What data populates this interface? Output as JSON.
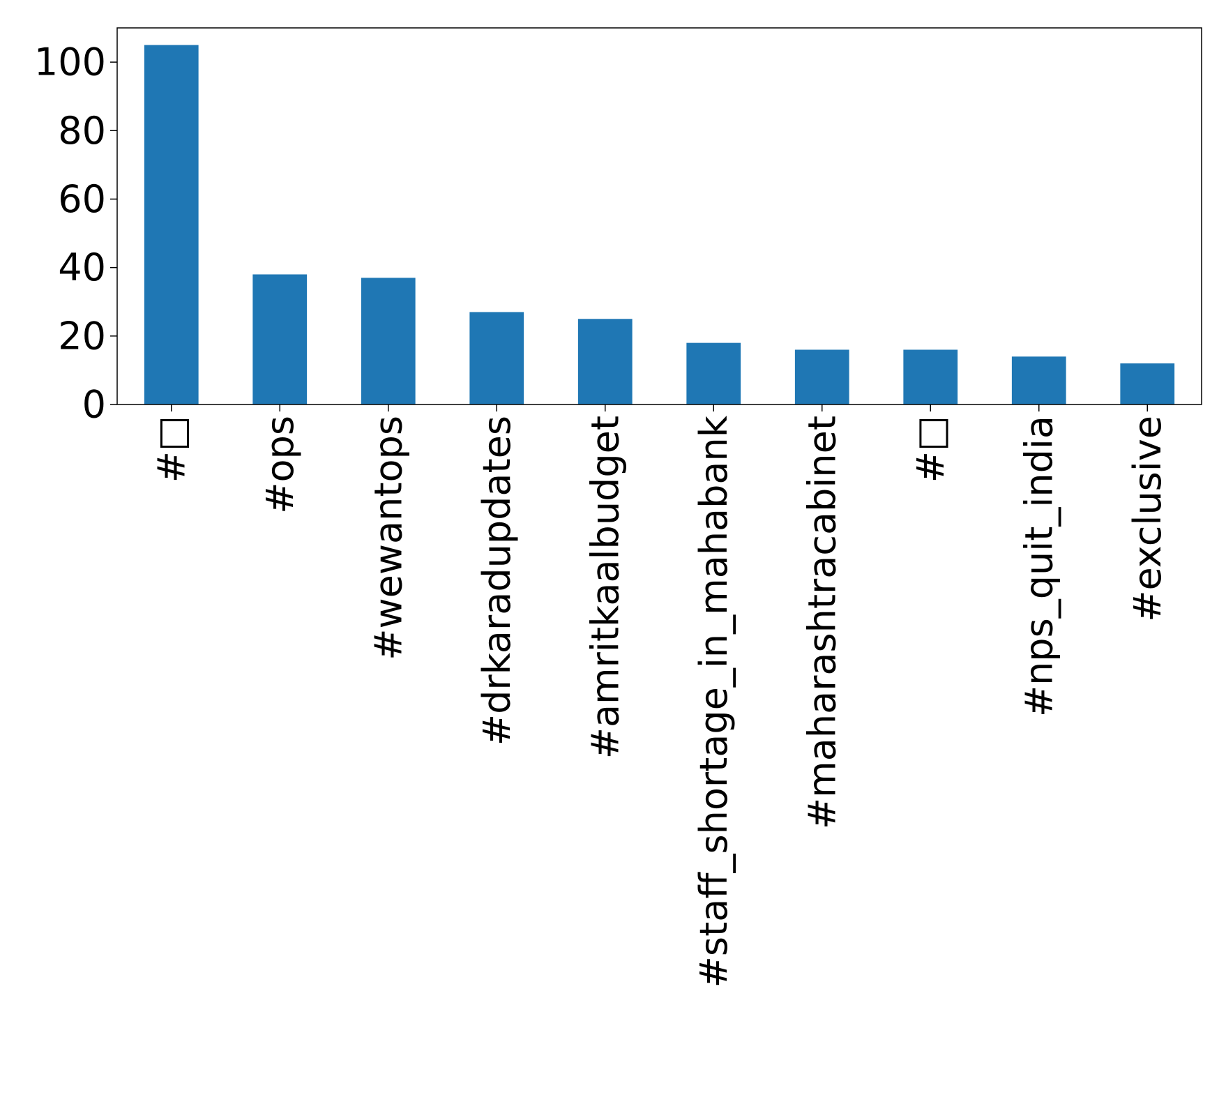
{
  "chart_data": {
    "type": "bar",
    "categories": [
      "#□",
      "#ops",
      "#wewantops",
      "#drkaradupdates",
      "#amritkaalbudget",
      "#staff_shortage_in_mahabank",
      "#maharashtracabinet",
      "#□",
      "#nps_quit_india",
      "#exclusive"
    ],
    "values": [
      105,
      38,
      37,
      27,
      25,
      18,
      16,
      16,
      14,
      12
    ],
    "ylim": [
      0,
      110
    ],
    "yticks": [
      "0",
      "20",
      "40",
      "60",
      "80",
      "100"
    ],
    "bar_color": "#1f77b4",
    "grid": false,
    "legend": "none"
  }
}
